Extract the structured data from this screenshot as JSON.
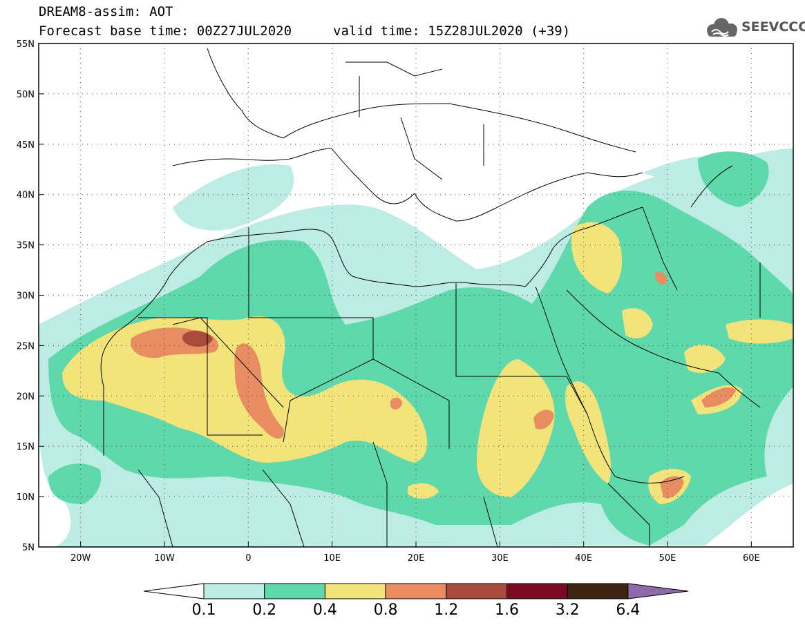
{
  "header": {
    "line1": "DREAM8-assim: AOT",
    "base_time": "Forecast base time: 00Z27JUL2020",
    "valid_time": "valid time: 15Z28JUL2020 (+39)"
  },
  "logo": {
    "icon": "cloud-icon",
    "text": "SEEVCCC"
  },
  "map": {
    "lon_range": [
      -25,
      65
    ],
    "lat_range": [
      5,
      55
    ],
    "lon_ticks": [
      {
        "value": -20,
        "label": "20W"
      },
      {
        "value": -10,
        "label": "10W"
      },
      {
        "value": 0,
        "label": "0"
      },
      {
        "value": 10,
        "label": "10E"
      },
      {
        "value": 20,
        "label": "20E"
      },
      {
        "value": 30,
        "label": "30E"
      },
      {
        "value": 40,
        "label": "40E"
      },
      {
        "value": 50,
        "label": "50E"
      },
      {
        "value": 60,
        "label": "60E"
      }
    ],
    "lat_ticks": [
      {
        "value": 5,
        "label": "5N"
      },
      {
        "value": 10,
        "label": "10N"
      },
      {
        "value": 15,
        "label": "15N"
      },
      {
        "value": 20,
        "label": "20N"
      },
      {
        "value": 25,
        "label": "25N"
      },
      {
        "value": 30,
        "label": "30N"
      },
      {
        "value": 35,
        "label": "35N"
      },
      {
        "value": 40,
        "label": "40N"
      },
      {
        "value": 45,
        "label": "45N"
      },
      {
        "value": 50,
        "label": "50N"
      },
      {
        "value": 55,
        "label": "55N"
      }
    ],
    "grid": "dotted"
  },
  "colorbar": {
    "levels": [
      "0.1",
      "0.2",
      "0.4",
      "0.8",
      "1.2",
      "1.6",
      "3.2",
      "6.4"
    ],
    "colors": [
      "#ffffff",
      "#bdece4",
      "#5fd8ac",
      "#f2e47a",
      "#e88d62",
      "#a84a3c",
      "#7a0a26",
      "#3d2412",
      "#8f6aa8"
    ]
  }
}
